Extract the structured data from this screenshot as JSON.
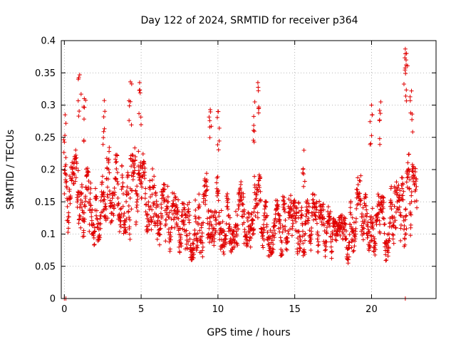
{
  "chart_data": {
    "type": "scatter",
    "title": "Day 122 of 2024, SRMTID for receiver p364",
    "xlabel": "GPS time / hours",
    "ylabel": "SRMTID / TECUs",
    "xlim": [
      -0.2,
      24.2
    ],
    "ylim": [
      0,
      0.4
    ],
    "x_ticks": [
      0,
      5,
      10,
      15,
      20
    ],
    "x_tick_labels": [
      "0",
      "5",
      "10",
      "15",
      "20"
    ],
    "y_ticks": [
      0,
      0.05,
      0.1,
      0.15,
      0.2,
      0.25,
      0.3,
      0.35,
      0.4
    ],
    "y_tick_labels": [
      "0",
      "0.05",
      "0.1",
      "0.15",
      "0.2",
      "0.25",
      "0.3",
      "0.35",
      "0.4"
    ],
    "grid": true,
    "marker": "+",
    "series": [
      {
        "name": "SRMTID",
        "color": "#e00000",
        "x_range": [
          0,
          22.95
        ],
        "sample_interval_hours": 0.0125,
        "envelope": {
          "x": [
            0,
            0.5,
            1,
            1.5,
            2,
            2.5,
            3,
            3.5,
            4,
            4.5,
            5,
            5.5,
            6,
            6.5,
            7,
            7.5,
            8,
            8.5,
            9,
            9.5,
            10,
            10.5,
            11,
            11.5,
            12,
            12.5,
            13,
            13.5,
            14,
            14.5,
            15,
            15.5,
            16,
            16.5,
            17,
            17.5,
            18,
            18.5,
            19,
            19.5,
            20,
            20.5,
            21,
            21.5,
            22,
            22.5,
            23
          ],
          "mean": [
            0.16,
            0.15,
            0.17,
            0.14,
            0.13,
            0.16,
            0.18,
            0.16,
            0.15,
            0.16,
            0.17,
            0.15,
            0.14,
            0.13,
            0.12,
            0.11,
            0.1,
            0.11,
            0.12,
            0.15,
            0.13,
            0.12,
            0.12,
            0.13,
            0.13,
            0.15,
            0.12,
            0.11,
            0.11,
            0.12,
            0.11,
            0.11,
            0.12,
            0.11,
            0.1,
            0.1,
            0.09,
            0.1,
            0.13,
            0.14,
            0.13,
            0.11,
            0.11,
            0.14,
            0.13,
            0.17,
            0.13
          ],
          "spread": [
            0.045,
            0.05,
            0.06,
            0.05,
            0.04,
            0.05,
            0.05,
            0.05,
            0.05,
            0.06,
            0.05,
            0.045,
            0.045,
            0.04,
            0.04,
            0.035,
            0.04,
            0.04,
            0.045,
            0.05,
            0.045,
            0.04,
            0.04,
            0.045,
            0.045,
            0.05,
            0.04,
            0.035,
            0.035,
            0.04,
            0.035,
            0.035,
            0.04,
            0.035,
            0.035,
            0.03,
            0.03,
            0.035,
            0.045,
            0.05,
            0.05,
            0.04,
            0.04,
            0.045,
            0.045,
            0.055,
            0.045
          ]
        },
        "peaks": [
          {
            "x": 0.05,
            "y": 0.285
          },
          {
            "x": 1.0,
            "y": 0.347
          },
          {
            "x": 1.3,
            "y": 0.31
          },
          {
            "x": 2.6,
            "y": 0.307
          },
          {
            "x": 4.3,
            "y": 0.336
          },
          {
            "x": 4.9,
            "y": 0.335
          },
          {
            "x": 9.5,
            "y": 0.293
          },
          {
            "x": 10.0,
            "y": 0.29
          },
          {
            "x": 12.4,
            "y": 0.305
          },
          {
            "x": 12.6,
            "y": 0.335
          },
          {
            "x": 15.6,
            "y": 0.23
          },
          {
            "x": 20.0,
            "y": 0.3
          },
          {
            "x": 20.6,
            "y": 0.305
          },
          {
            "x": 22.2,
            "y": 0.387
          },
          {
            "x": 22.25,
            "y": 0.37
          },
          {
            "x": 22.6,
            "y": 0.322
          }
        ],
        "zeros": [
          {
            "x": 0.0,
            "y": 0.0
          },
          {
            "x": 0.1,
            "y": 0.0
          },
          {
            "x": 22.2,
            "y": 0.0
          }
        ]
      }
    ]
  }
}
